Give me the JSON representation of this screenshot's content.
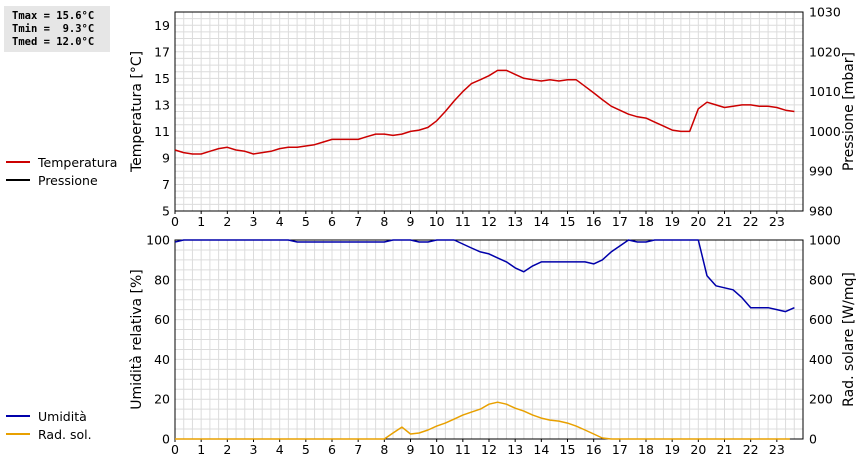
{
  "stats": {
    "tmax": "Tmax = 15.6°C",
    "tmin": "Tmin =  9.3°C",
    "tmed": "Tmed = 12.0°C"
  },
  "legend_top": [
    {
      "label": "Temperatura",
      "color": "#cc0000"
    },
    {
      "label": "Pressione",
      "color": "#000000"
    }
  ],
  "legend_bottom": [
    {
      "label": "Umidità",
      "color": "#0000aa"
    },
    {
      "label": "Rad. sol.",
      "color": "#e8a000"
    }
  ],
  "chart_data": [
    {
      "type": "line",
      "ylabel": "Temperatura [°C]",
      "y2label": "Pressione [mbar]",
      "xlim": [
        0,
        24
      ],
      "ylim": [
        5,
        20
      ],
      "y2lim": [
        980,
        1030
      ],
      "xticks": [
        "0",
        "1",
        "2",
        "3",
        "4",
        "5",
        "6",
        "7",
        "8",
        "9",
        "10",
        "11",
        "12",
        "13",
        "14",
        "15",
        "16",
        "17",
        "18",
        "19",
        "20",
        "21",
        "22",
        "23"
      ],
      "yticks": [
        "5",
        "7",
        "9",
        "11",
        "13",
        "15",
        "17",
        "19"
      ],
      "y2ticks": [
        "980",
        "990",
        "1000",
        "1010",
        "1020",
        "1030"
      ],
      "grid": true,
      "series": [
        {
          "name": "Temperatura",
          "color": "#cc0000",
          "axis": "left",
          "x": [
            0,
            0.33,
            0.67,
            1,
            1.33,
            1.67,
            2,
            2.33,
            2.67,
            3,
            3.33,
            3.67,
            4,
            4.33,
            4.67,
            5,
            5.33,
            5.67,
            6,
            6.33,
            6.67,
            7,
            7.33,
            7.67,
            8,
            8.33,
            8.67,
            9,
            9.33,
            9.67,
            10,
            10.33,
            10.67,
            11,
            11.33,
            11.67,
            12,
            12.33,
            12.67,
            13,
            13.33,
            13.67,
            14,
            14.33,
            14.67,
            15,
            15.33,
            15.67,
            16,
            16.33,
            16.67,
            17,
            17.33,
            17.67,
            18,
            18.33,
            18.67,
            19,
            19.33,
            19.67,
            20,
            20.33,
            20.67,
            21,
            21.33,
            21.67,
            22,
            22.33,
            22.67,
            23,
            23.33,
            23.67
          ],
          "values": [
            9.6,
            9.4,
            9.3,
            9.3,
            9.5,
            9.7,
            9.8,
            9.6,
            9.5,
            9.3,
            9.4,
            9.5,
            9.7,
            9.8,
            9.8,
            9.9,
            10.0,
            10.2,
            10.4,
            10.4,
            10.4,
            10.4,
            10.6,
            10.8,
            10.8,
            10.7,
            10.8,
            11.0,
            11.1,
            11.3,
            11.8,
            12.5,
            13.3,
            14.0,
            14.6,
            14.9,
            15.2,
            15.6,
            15.6,
            15.3,
            15.0,
            14.9,
            14.8,
            14.9,
            14.8,
            14.9,
            14.9,
            14.4,
            13.9,
            13.4,
            12.9,
            12.6,
            12.3,
            12.1,
            12.0,
            11.7,
            11.4,
            11.1,
            11.0,
            11.0,
            12.7,
            13.2,
            13.0,
            12.8,
            12.9,
            13.0,
            13.0,
            12.9,
            12.9,
            12.8,
            12.6,
            12.5
          ]
        }
      ]
    },
    {
      "type": "line",
      "ylabel": "Umidità relativa [%]",
      "y2label": "Rad. solare [W/mq]",
      "xlim": [
        0,
        24
      ],
      "ylim": [
        0,
        100
      ],
      "y2lim": [
        0,
        1000
      ],
      "xticks": [
        "0",
        "1",
        "2",
        "3",
        "4",
        "5",
        "6",
        "7",
        "8",
        "9",
        "10",
        "11",
        "12",
        "13",
        "14",
        "15",
        "16",
        "17",
        "18",
        "19",
        "20",
        "21",
        "22",
        "23"
      ],
      "yticks": [
        "0",
        "20",
        "40",
        "60",
        "80",
        "100"
      ],
      "y2ticks": [
        "0",
        "200",
        "400",
        "600",
        "800",
        "1000"
      ],
      "grid": true,
      "series": [
        {
          "name": "Umidità",
          "color": "#0000aa",
          "axis": "left",
          "x": [
            0,
            0.33,
            0.67,
            1,
            1.33,
            1.67,
            2,
            2.33,
            2.67,
            3,
            3.33,
            3.67,
            4,
            4.33,
            4.67,
            5,
            5.33,
            5.67,
            6,
            6.33,
            6.67,
            7,
            7.33,
            7.67,
            8,
            8.33,
            8.67,
            9,
            9.33,
            9.67,
            10,
            10.33,
            10.67,
            11,
            11.33,
            11.67,
            12,
            12.33,
            12.67,
            13,
            13.33,
            13.67,
            14,
            14.33,
            14.67,
            15,
            15.33,
            15.67,
            16,
            16.33,
            16.67,
            17,
            17.33,
            17.67,
            18,
            18.33,
            18.67,
            19,
            19.33,
            19.67,
            20,
            20.33,
            20.67,
            21,
            21.33,
            21.67,
            22,
            22.33,
            22.67,
            23,
            23.33,
            23.67
          ],
          "values": [
            99,
            100,
            100,
            100,
            100,
            100,
            100,
            100,
            100,
            100,
            100,
            100,
            100,
            100,
            99,
            99,
            99,
            99,
            99,
            99,
            99,
            99,
            99,
            99,
            99,
            100,
            100,
            100,
            99,
            99,
            100,
            100,
            100,
            98,
            96,
            94,
            93,
            91,
            89,
            86,
            84,
            87,
            89,
            89,
            89,
            89,
            89,
            89,
            88,
            90,
            94,
            97,
            100,
            99,
            99,
            100,
            100,
            100,
            100,
            100,
            100,
            82,
            77,
            76,
            75,
            71,
            66,
            66,
            66,
            65,
            64,
            66
          ]
        },
        {
          "name": "Rad. sol.",
          "color": "#e8a000",
          "axis": "right",
          "x": [
            0,
            0.5,
            1,
            1.5,
            2,
            2.5,
            3,
            3.5,
            4,
            4.5,
            5,
            5.5,
            6,
            6.5,
            7,
            7.5,
            8,
            8.33,
            8.67,
            9,
            9.33,
            9.67,
            10,
            10.33,
            10.67,
            11,
            11.33,
            11.67,
            12,
            12.33,
            12.67,
            13,
            13.33,
            13.67,
            14,
            14.33,
            14.67,
            15,
            15.33,
            15.67,
            16,
            16.33,
            16.67,
            17,
            17.5,
            18,
            18.5,
            19,
            19.5,
            20,
            20.5,
            21,
            21.5,
            22,
            22.5,
            23,
            23.5
          ],
          "values": [
            0,
            0,
            0,
            0,
            0,
            0,
            0,
            0,
            0,
            0,
            0,
            0,
            0,
            0,
            0,
            0,
            0,
            30,
            60,
            25,
            30,
            45,
            65,
            80,
            100,
            120,
            135,
            150,
            175,
            185,
            175,
            155,
            140,
            120,
            105,
            95,
            90,
            80,
            65,
            45,
            25,
            5,
            0,
            0,
            0,
            0,
            0,
            0,
            0,
            0,
            0,
            0,
            0,
            0,
            0,
            0,
            0
          ]
        }
      ]
    }
  ]
}
